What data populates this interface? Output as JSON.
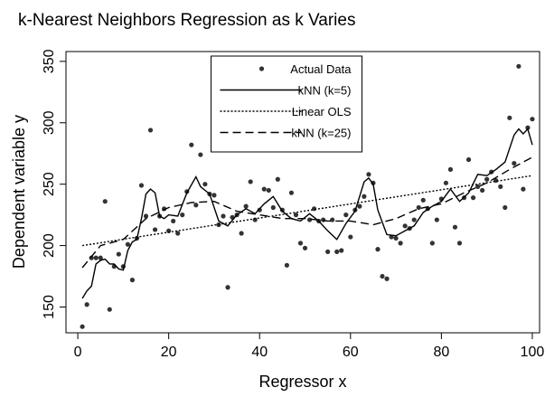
{
  "chart_data": {
    "type": "scatter-line",
    "title": "k-Nearest Neighbors Regression as k Varies",
    "xlabel": "Regressor x",
    "ylabel": "Dependent variable y",
    "xlim": [
      -2.6,
      101.6
    ],
    "xticks": [
      0,
      20,
      40,
      60,
      80,
      100
    ],
    "ylim": [
      129,
      358
    ],
    "yticks": [
      150,
      200,
      250,
      300,
      350
    ],
    "legend": "top",
    "series": [
      {
        "name": "Actual Data",
        "kind": "points",
        "color": "#333333",
        "x": [
          1,
          2,
          3,
          4,
          5,
          6,
          7,
          8,
          9,
          10,
          11,
          12,
          13,
          14,
          15,
          16,
          17,
          18,
          19,
          20,
          21,
          22,
          23,
          24,
          25,
          26,
          27,
          28,
          29,
          30,
          31,
          32,
          33,
          34,
          35,
          36,
          37,
          38,
          39,
          40,
          41,
          42,
          43,
          44,
          45,
          46,
          47,
          48,
          49,
          50,
          51,
          52,
          53,
          54,
          55,
          56,
          57,
          58,
          59,
          60,
          61,
          62,
          63,
          64,
          65,
          66,
          67,
          68,
          69,
          70,
          71,
          72,
          73,
          74,
          75,
          76,
          77,
          78,
          79,
          80,
          81,
          82,
          83,
          84,
          85,
          86,
          87,
          88,
          89,
          90,
          91,
          92,
          93,
          94,
          95,
          96,
          97,
          98,
          99,
          100
        ],
        "values": [
          134,
          152,
          190,
          190,
          190,
          236,
          148,
          183,
          193,
          183,
          201,
          172,
          206,
          249,
          224,
          294,
          213,
          224,
          230,
          212,
          220,
          210,
          225,
          244,
          282,
          233,
          274,
          250,
          242,
          241,
          217,
          224,
          166,
          223,
          225,
          210,
          232,
          252,
          221,
          229,
          246,
          245,
          231,
          254,
          229,
          184,
          243,
          225,
          202,
          198,
          221,
          230,
          220,
          221,
          195,
          221,
          195,
          196,
          225,
          207,
          229,
          232,
          240,
          258,
          251,
          197,
          175,
          173,
          207,
          206,
          202,
          216,
          214,
          221,
          231,
          237,
          230,
          202,
          221,
          238,
          251,
          262,
          215,
          202,
          239,
          270,
          239,
          248,
          245,
          254,
          260,
          253,
          248,
          231,
          304,
          267,
          346,
          246,
          296,
          303
        ]
      },
      {
        "name": "kNN (k=5)",
        "kind": "line",
        "dash": "none",
        "color": "#000000",
        "x": [
          1,
          2,
          3,
          4,
          5,
          6,
          7,
          8,
          9,
          10,
          11,
          12,
          13,
          14,
          15,
          16,
          17,
          18,
          19,
          20,
          22,
          24,
          26,
          27,
          29,
          31,
          33,
          35,
          37,
          39,
          41,
          43,
          45,
          47,
          49,
          51,
          53,
          55,
          57,
          59,
          61,
          63,
          64,
          65,
          66,
          68,
          70,
          72,
          74,
          76,
          78,
          80,
          82,
          84,
          86,
          88,
          90,
          92,
          94,
          96,
          97,
          98,
          99,
          100
        ],
        "values": [
          157,
          163,
          167,
          185,
          188,
          189,
          185,
          185,
          181,
          180,
          196,
          203,
          205,
          222,
          242,
          246,
          243,
          224,
          222,
          225,
          224,
          243,
          256,
          248,
          242,
          220,
          216,
          225,
          230,
          226,
          234,
          240,
          228,
          222,
          220,
          226,
          220,
          212,
          205,
          218,
          228,
          252,
          255,
          250,
          229,
          209,
          208,
          212,
          216,
          227,
          232,
          236,
          246,
          236,
          243,
          258,
          257,
          262,
          268,
          290,
          295,
          291,
          295,
          282
        ]
      },
      {
        "name": "Linear OLS",
        "kind": "line",
        "dash": "2,2",
        "color": "#000000",
        "x": [
          1,
          100
        ],
        "values": [
          200,
          257
        ]
      },
      {
        "name": "kNN (k=25)",
        "kind": "line",
        "dash": "9,5",
        "color": "#000000",
        "x": [
          1,
          5,
          10,
          15,
          20,
          25,
          30,
          35,
          40,
          45,
          50,
          55,
          60,
          65,
          70,
          75,
          80,
          85,
          90,
          95,
          100
        ],
        "values": [
          182,
          200,
          205,
          222,
          231,
          235,
          236,
          228,
          225,
          222,
          222,
          220,
          220,
          217,
          222,
          230,
          234,
          243,
          251,
          262,
          272
        ]
      }
    ]
  }
}
